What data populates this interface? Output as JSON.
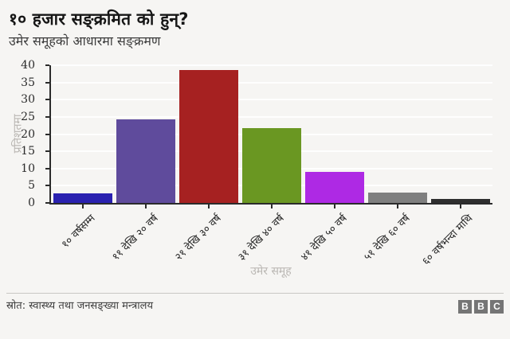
{
  "header": {
    "title": "१० हजार सङ्क्रमित को हुन्?",
    "subtitle": "उमेर समूहको आधारमा सङ्क्रमण"
  },
  "chart_data": {
    "type": "bar",
    "title": "१० हजार सङ्क्रमित को हुन्?",
    "subtitle": "उमेर समूहको आधारमा सङ्क्रमण",
    "categories": [
      "१० वर्षसम्म",
      "११ देखि २० वर्ष",
      "२१ देखि ३० वर्ष",
      "३१ देखि ४० वर्ष",
      "४१ देखि ५० वर्ष",
      "५१ देखि ६० वर्ष",
      "६० वर्षभन्दा माथि"
    ],
    "values": [
      2.8,
      24.3,
      38.7,
      21.7,
      9.1,
      3.1,
      1.1
    ],
    "bar_colors": [
      "#2a21b0",
      "#5f4b9c",
      "#a62121",
      "#6a9722",
      "#ae29e4",
      "#7f7f7f",
      "#2e2e2e"
    ],
    "xlabel": "उमेर समूह",
    "ylabel": "प्रतिशतमा",
    "ylim": [
      0,
      40
    ],
    "yticks": [
      0,
      5,
      10,
      15,
      20,
      25,
      30,
      35,
      40
    ],
    "grid": true,
    "legend": false
  },
  "footer": {
    "source": "स्रोत: स्वास्थ्य तथा जनसङ्ख्या मन्त्रालय",
    "logo_letters": [
      "B",
      "B",
      "C"
    ]
  },
  "colors": {
    "background": "#f6f5f3",
    "axis": "#2b2b2b",
    "grid": "rgba(255,255,255,0.9)",
    "title_text": "#161616",
    "subtitle_text": "#3c3c3c",
    "muted_label": "#b9b6b2",
    "tick_label": "#262626",
    "source_text": "#3d3d3d",
    "logo_bg": "#757575",
    "logo_text": "#ffffff"
  }
}
